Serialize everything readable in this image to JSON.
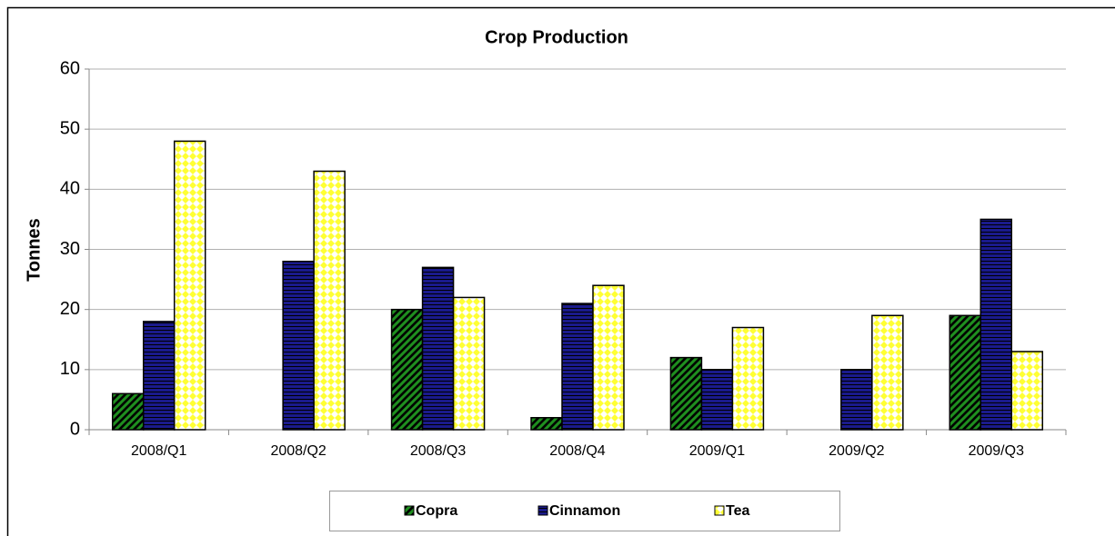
{
  "chart_data": {
    "type": "bar",
    "title": "Crop Production",
    "y_label": "Tonnes",
    "categories": [
      "2008/Q1",
      "2008/Q2",
      "2008/Q3",
      "2008/Q4",
      "2009/Q1",
      "2009/Q2",
      "2009/Q3"
    ],
    "series": [
      {
        "name": "Copra",
        "color": "#1f8f1f",
        "values": [
          6,
          null,
          20,
          2,
          12,
          null,
          19
        ]
      },
      {
        "name": "Cinnamon",
        "color": "#1a1a8c",
        "values": [
          18,
          28,
          27,
          21,
          10,
          10,
          35
        ]
      },
      {
        "name": "Tea",
        "color": "#ffff33",
        "values": [
          48,
          43,
          22,
          24,
          17,
          19,
          13
        ]
      }
    ],
    "ylim": [
      0,
      60
    ],
    "yticks": [
      0,
      10,
      20,
      30,
      40,
      50,
      60
    ],
    "grid": true,
    "legend": "bottom"
  }
}
